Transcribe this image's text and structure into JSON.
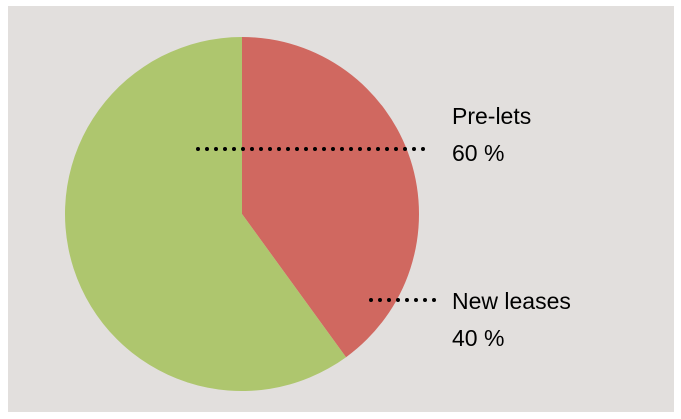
{
  "chart_data": {
    "type": "pie",
    "slices": [
      {
        "name": "Pre-lets",
        "value": 60,
        "value_label": "60 %",
        "color": "#aec66e"
      },
      {
        "name": "New leases",
        "value": 40,
        "value_label": "40 %",
        "color": "#d06860"
      }
    ],
    "start_angle_deg": 0,
    "direction": "clockwise",
    "legend": "none",
    "data_labels": "outside-right"
  }
}
